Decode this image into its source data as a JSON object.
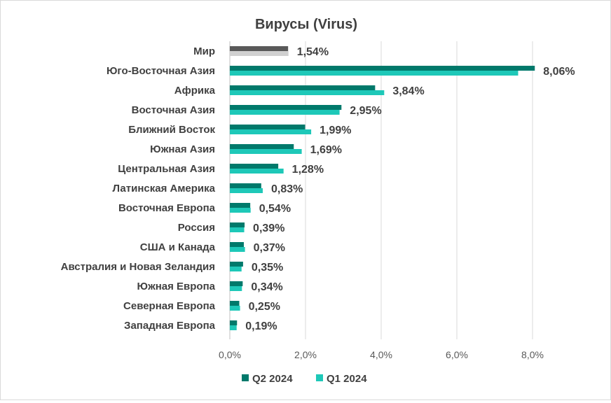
{
  "chart_data": {
    "type": "bar",
    "orientation": "horizontal",
    "title": "Вирусы (Virus)",
    "categories": [
      "Мир",
      "Юго-Восточная Азия",
      "Африка",
      "Восточная Азия",
      "Ближний Восток",
      "Южная Азия",
      "Центральная Азия",
      "Латинская Америка",
      "Восточная Европа",
      "Россия",
      "США и Канада",
      "Австралия и Новая Зеландия",
      "Южная Европа",
      "Северная Европа",
      "Западная Европа"
    ],
    "series": [
      {
        "name": "Q2 2024",
        "color": "#00796b",
        "highlight_color": "#595959",
        "values": [
          1.54,
          8.06,
          3.84,
          2.95,
          1.99,
          1.69,
          1.28,
          0.83,
          0.54,
          0.39,
          0.37,
          0.35,
          0.34,
          0.25,
          0.19
        ]
      },
      {
        "name": "Q1 2024",
        "color": "#1ec8b8",
        "highlight_color": "#d0d0d0",
        "values": [
          1.55,
          7.62,
          4.08,
          2.9,
          2.15,
          1.9,
          1.42,
          0.87,
          0.55,
          0.38,
          0.4,
          0.31,
          0.32,
          0.27,
          0.18
        ]
      }
    ],
    "data_labels": [
      "1,54%",
      "8,06%",
      "3,84%",
      "2,95%",
      "1,99%",
      "1,69%",
      "1,28%",
      "0,83%",
      "0,54%",
      "0,39%",
      "0,37%",
      "0,35%",
      "0,34%",
      "0,25%",
      "0,19%"
    ],
    "xlim": [
      0,
      8
    ],
    "xticks": [
      0,
      2,
      4,
      6,
      8
    ],
    "xtick_labels": [
      "0,0%",
      "2,0%",
      "4,0%",
      "6,0%",
      "8,0%"
    ],
    "grid": true,
    "legend": "bottom"
  }
}
